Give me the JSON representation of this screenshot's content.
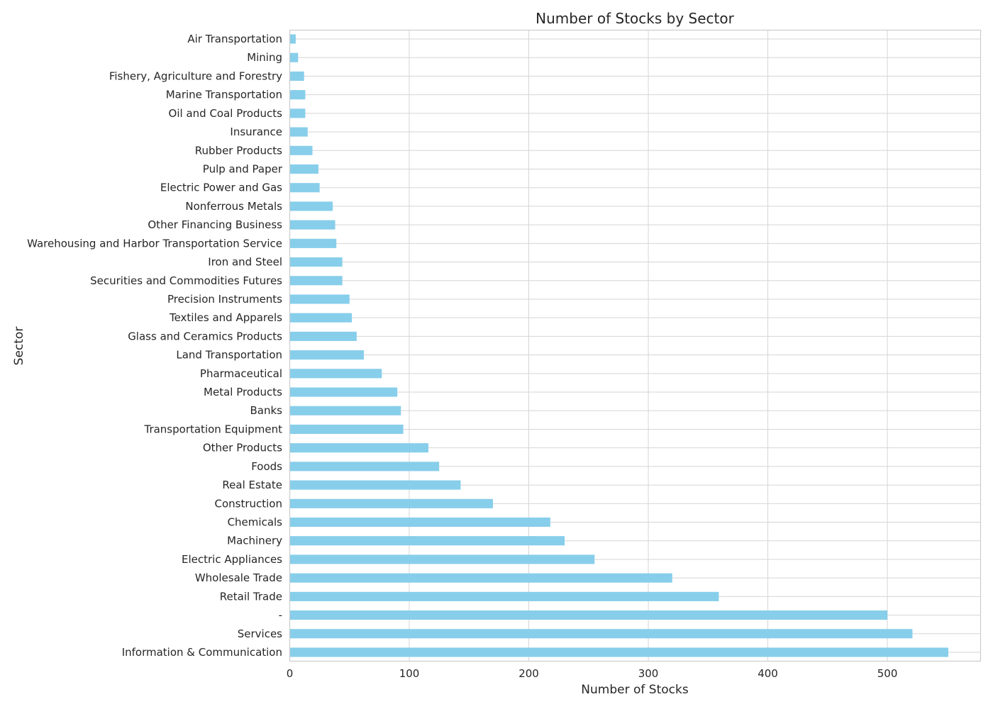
{
  "chart_data": {
    "type": "bar",
    "orientation": "horizontal",
    "title": "Number of Stocks by Sector",
    "xlabel": "Number of Stocks",
    "ylabel": "Sector",
    "xlim": [
      0,
      578
    ],
    "xticks": [
      0,
      100,
      200,
      300,
      400,
      500
    ],
    "grid": true,
    "bar_color": "#87ceeb",
    "categories": [
      "Information & Communication",
      "Services",
      "-",
      "Retail Trade",
      "Wholesale Trade",
      "Electric Appliances",
      "Machinery",
      "Chemicals",
      "Construction",
      "Real Estate",
      "Foods",
      "Other Products",
      "Transportation Equipment",
      "Banks",
      "Metal Products",
      "Pharmaceutical",
      "Land Transportation",
      "Glass and Ceramics Products",
      "Textiles and Apparels",
      "Precision Instruments",
      "Securities and Commodities Futures",
      "Iron and Steel",
      "Warehousing and Harbor Transportation Service",
      "Other Financing Business",
      "Nonferrous Metals",
      "Electric Power and Gas",
      "Pulp and Paper",
      "Rubber Products",
      "Insurance",
      "Oil and Coal Products",
      "Marine Transportation",
      "Fishery, Agriculture and Forestry",
      "Mining",
      "Air Transportation"
    ],
    "values": [
      551,
      521,
      500,
      359,
      320,
      255,
      230,
      218,
      170,
      143,
      125,
      116,
      95,
      93,
      90,
      77,
      62,
      56,
      52,
      50,
      44,
      44,
      39,
      38,
      36,
      25,
      24,
      19,
      15,
      13,
      13,
      12,
      7,
      5
    ]
  }
}
